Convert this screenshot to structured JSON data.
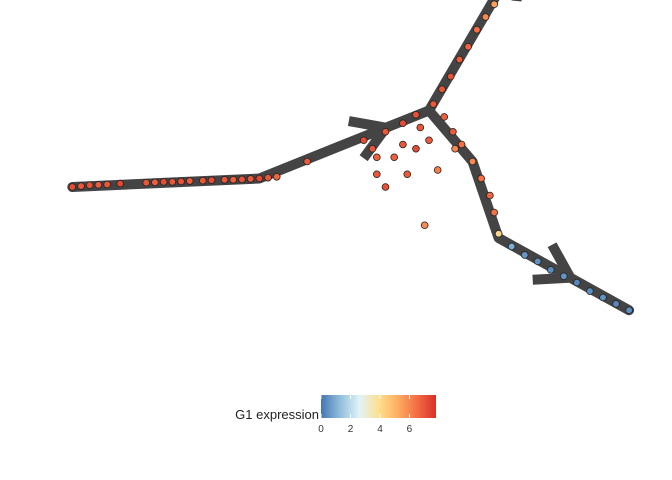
{
  "chart_data": {
    "type": "scatter",
    "title": "",
    "xlabel": "",
    "ylabel": "",
    "grid": false,
    "legend_placement": "bottom",
    "colorbar": {
      "title": "G1 expression",
      "ticks": [
        "0",
        "2",
        "4",
        "6"
      ],
      "tick_values": [
        0,
        2,
        4,
        6
      ],
      "range": [
        0,
        7.8
      ],
      "colors": [
        "#4575b4",
        "#91bfdb",
        "#e0f3f8",
        "#fee090",
        "#fdae61",
        "#f46d43",
        "#d73027"
      ]
    },
    "colors": {
      "trajectory": "#444444",
      "point_outline": "#222222"
    },
    "trajectory": {
      "arrow_direction": "outward",
      "branches": [
        {
          "name": "",
          "path": [
            [
              -8.2,
              0.0
            ],
            [
              -3.9,
              0.2
            ],
            [
              -2.2,
              0.9
            ],
            [
              0.0,
              1.8
            ]
          ]
        },
        {
          "name": "",
          "path": [
            [
              0.0,
              1.8
            ],
            [
              1.6,
              4.6
            ],
            [
              2.5,
              5.8
            ]
          ]
        },
        {
          "name": "",
          "path": [
            [
              0.0,
              1.8
            ],
            [
              1.0,
              0.6
            ],
            [
              1.6,
              -1.2
            ],
            [
              4.6,
              -2.9
            ]
          ]
        }
      ]
    },
    "points": [
      {
        "x": -8.2,
        "y": 0.0,
        "v": 7.2
      },
      {
        "x": -8.0,
        "y": 0.02,
        "v": 7.0
      },
      {
        "x": -7.8,
        "y": 0.04,
        "v": 7.1
      },
      {
        "x": -7.6,
        "y": 0.05,
        "v": 6.9
      },
      {
        "x": -7.4,
        "y": 0.06,
        "v": 7.0
      },
      {
        "x": -7.1,
        "y": 0.08,
        "v": 7.3
      },
      {
        "x": -6.5,
        "y": 0.1,
        "v": 7.0
      },
      {
        "x": -6.3,
        "y": 0.11,
        "v": 6.8
      },
      {
        "x": -6.1,
        "y": 0.12,
        "v": 7.2
      },
      {
        "x": -5.9,
        "y": 0.12,
        "v": 7.0
      },
      {
        "x": -5.7,
        "y": 0.13,
        "v": 7.1
      },
      {
        "x": -5.5,
        "y": 0.14,
        "v": 6.9
      },
      {
        "x": -5.2,
        "y": 0.15,
        "v": 7.0
      },
      {
        "x": -5.0,
        "y": 0.16,
        "v": 7.2
      },
      {
        "x": -4.7,
        "y": 0.17,
        "v": 7.0
      },
      {
        "x": -4.5,
        "y": 0.17,
        "v": 6.8
      },
      {
        "x": -4.3,
        "y": 0.18,
        "v": 7.1
      },
      {
        "x": -4.1,
        "y": 0.19,
        "v": 7.0
      },
      {
        "x": -3.9,
        "y": 0.2,
        "v": 7.3
      },
      {
        "x": -3.7,
        "y": 0.22,
        "v": 7.0
      },
      {
        "x": -3.5,
        "y": 0.24,
        "v": 6.7
      },
      {
        "x": -2.8,
        "y": 0.6,
        "v": 6.9
      },
      {
        "x": -1.5,
        "y": 1.1,
        "v": 7.2
      },
      {
        "x": -1.3,
        "y": 0.9,
        "v": 7.0
      },
      {
        "x": -1.0,
        "y": 1.3,
        "v": 7.0
      },
      {
        "x": -0.6,
        "y": 1.5,
        "v": 7.2
      },
      {
        "x": -0.3,
        "y": 1.7,
        "v": 7.1
      },
      {
        "x": 0.1,
        "y": 1.95,
        "v": 7.0
      },
      {
        "x": 0.3,
        "y": 2.3,
        "v": 7.0
      },
      {
        "x": 0.5,
        "y": 2.6,
        "v": 7.1
      },
      {
        "x": 0.7,
        "y": 3.0,
        "v": 6.9
      },
      {
        "x": 0.9,
        "y": 3.3,
        "v": 6.7
      },
      {
        "x": 1.1,
        "y": 3.7,
        "v": 6.5
      },
      {
        "x": 1.3,
        "y": 4.0,
        "v": 6.0
      },
      {
        "x": 1.5,
        "y": 4.3,
        "v": 5.5
      },
      {
        "x": 1.65,
        "y": 4.6,
        "v": 5.0
      },
      {
        "x": 1.8,
        "y": 4.85,
        "v": 4.6
      },
      {
        "x": 1.95,
        "y": 5.1,
        "v": 4.2
      },
      {
        "x": 2.1,
        "y": 5.3,
        "v": 3.8
      },
      {
        "x": 2.25,
        "y": 5.5,
        "v": 3.2
      },
      {
        "x": 2.38,
        "y": 5.68,
        "v": 2.2
      },
      {
        "x": 2.5,
        "y": 5.8,
        "v": 0.5
      },
      {
        "x": 0.35,
        "y": 1.65,
        "v": 6.8
      },
      {
        "x": 0.55,
        "y": 1.3,
        "v": 6.9
      },
      {
        "x": 0.75,
        "y": 1.0,
        "v": 6.5
      },
      {
        "x": 1.0,
        "y": 0.6,
        "v": 6.0
      },
      {
        "x": 1.2,
        "y": 0.2,
        "v": 6.5
      },
      {
        "x": 1.4,
        "y": -0.2,
        "v": 6.7
      },
      {
        "x": 1.5,
        "y": -0.6,
        "v": 6.4
      },
      {
        "x": 1.6,
        "y": -1.1,
        "v": 4.2
      },
      {
        "x": 1.9,
        "y": -1.4,
        "v": 1.0
      },
      {
        "x": 2.2,
        "y": -1.6,
        "v": 0.6
      },
      {
        "x": 2.5,
        "y": -1.75,
        "v": 0.5
      },
      {
        "x": 2.8,
        "y": -1.95,
        "v": 0.4
      },
      {
        "x": 3.1,
        "y": -2.1,
        "v": 0.5
      },
      {
        "x": 3.4,
        "y": -2.25,
        "v": 0.3
      },
      {
        "x": 3.7,
        "y": -2.45,
        "v": 0.4
      },
      {
        "x": 4.0,
        "y": -2.6,
        "v": 0.5
      },
      {
        "x": 4.3,
        "y": -2.75,
        "v": 0.3
      },
      {
        "x": 4.6,
        "y": -2.9,
        "v": 0.4
      },
      {
        "x": -0.6,
        "y": 1.0,
        "v": 7.0
      },
      {
        "x": -1.2,
        "y": 0.3,
        "v": 7.0
      },
      {
        "x": -1.0,
        "y": 0.0,
        "v": 7.1
      },
      {
        "x": -0.8,
        "y": 0.7,
        "v": 6.8
      },
      {
        "x": -0.3,
        "y": 0.9,
        "v": 7.2
      },
      {
        "x": 0.0,
        "y": 1.1,
        "v": 6.9
      },
      {
        "x": -0.2,
        "y": 1.4,
        "v": 7.0
      },
      {
        "x": 0.2,
        "y": 0.4,
        "v": 6.2
      },
      {
        "x": 0.6,
        "y": 0.9,
        "v": 6.0
      },
      {
        "x": -1.2,
        "y": 0.7,
        "v": 6.8
      },
      {
        "x": -0.5,
        "y": 0.3,
        "v": 6.9
      },
      {
        "x": -0.1,
        "y": -0.9,
        "v": 5.9
      }
    ]
  }
}
